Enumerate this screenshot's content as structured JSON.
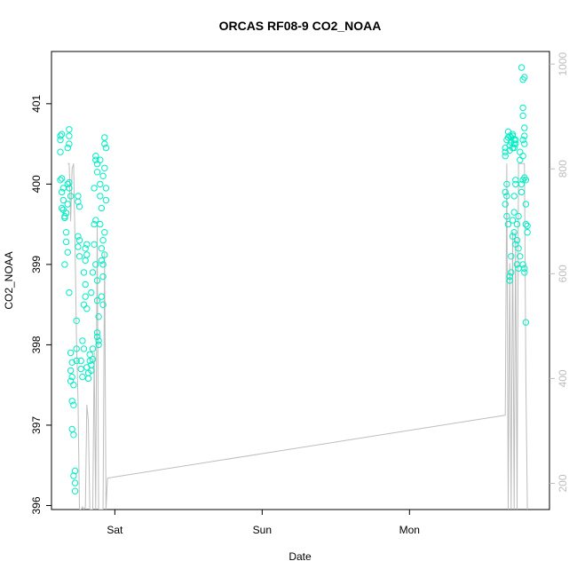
{
  "chart_data": {
    "type": "scatter",
    "title": "ORCAS RF08-9 CO2_NOAA",
    "xlabel": "Date",
    "ylabel": "CO2_NOAA",
    "x_ticks": [
      {
        "t": 1.0,
        "label": "Sat"
      },
      {
        "t": 2.0,
        "label": "Sun"
      },
      {
        "t": 3.0,
        "label": "Mon"
      }
    ],
    "y_ticks": [
      396,
      397,
      398,
      399,
      400,
      401
    ],
    "ylim": [
      395.95,
      401.65
    ],
    "xlim": [
      0.57,
      3.95
    ],
    "y2_ticks": [
      200,
      400,
      600,
      800,
      1000
    ],
    "y2lim": [
      1024,
      150
    ],
    "points_color": "#00eec4",
    "line_color": "#bdbdbd",
    "series": [
      {
        "kind": "points",
        "points": [
          [
            0.63,
            400.6
          ],
          [
            0.63,
            400.55
          ],
          [
            0.64,
            400.62
          ],
          [
            0.63,
            400.4
          ],
          [
            0.64,
            400.07
          ],
          [
            0.63,
            400.05
          ],
          [
            0.65,
            399.95
          ],
          [
            0.64,
            399.9
          ],
          [
            0.65,
            399.8
          ],
          [
            0.64,
            399.7
          ],
          [
            0.65,
            399.68
          ],
          [
            0.66,
            399.6
          ],
          [
            0.67,
            399.64
          ],
          [
            0.66,
            399.58
          ],
          [
            0.67,
            399.4
          ],
          [
            0.67,
            399.28
          ],
          [
            0.68,
            399.15
          ],
          [
            0.66,
            399.0
          ],
          [
            0.69,
            400.68
          ],
          [
            0.69,
            400.6
          ],
          [
            0.69,
            400.5
          ],
          [
            0.68,
            400.45
          ],
          [
            0.69,
            400.02
          ],
          [
            0.68,
            400.0
          ],
          [
            0.69,
            399.95
          ],
          [
            0.7,
            399.85
          ],
          [
            0.68,
            399.75
          ],
          [
            0.69,
            398.65
          ],
          [
            0.7,
            397.9
          ],
          [
            0.71,
            397.78
          ],
          [
            0.7,
            397.68
          ],
          [
            0.71,
            397.6
          ],
          [
            0.7,
            397.55
          ],
          [
            0.72,
            397.5
          ],
          [
            0.71,
            397.3
          ],
          [
            0.72,
            397.25
          ],
          [
            0.71,
            396.95
          ],
          [
            0.72,
            396.88
          ],
          [
            0.73,
            396.43
          ],
          [
            0.72,
            396.37
          ],
          [
            0.73,
            396.28
          ],
          [
            0.73,
            396.18
          ],
          [
            0.74,
            397.8
          ],
          [
            0.74,
            397.95
          ],
          [
            0.74,
            398.3
          ],
          [
            0.75,
            399.85
          ],
          [
            0.75,
            399.78
          ],
          [
            0.76,
            399.72
          ],
          [
            0.75,
            399.35
          ],
          [
            0.76,
            399.3
          ],
          [
            0.75,
            399.22
          ],
          [
            0.76,
            399.1
          ],
          [
            0.77,
            397.8
          ],
          [
            0.77,
            397.7
          ],
          [
            0.78,
            397.6
          ],
          [
            0.78,
            398.05
          ],
          [
            0.79,
            397.95
          ],
          [
            0.79,
            398.5
          ],
          [
            0.8,
            398.75
          ],
          [
            0.79,
            398.9
          ],
          [
            0.8,
            399.05
          ],
          [
            0.81,
            399.12
          ],
          [
            0.8,
            399.2
          ],
          [
            0.81,
            399.25
          ],
          [
            0.8,
            398.6
          ],
          [
            0.81,
            398.45
          ],
          [
            0.81,
            397.72
          ],
          [
            0.82,
            397.65
          ],
          [
            0.82,
            397.58
          ],
          [
            0.83,
            397.8
          ],
          [
            0.83,
            397.88
          ],
          [
            0.84,
            397.75
          ],
          [
            0.84,
            397.68
          ],
          [
            0.85,
            397.82
          ],
          [
            0.85,
            397.95
          ],
          [
            0.84,
            398.65
          ],
          [
            0.85,
            398.9
          ],
          [
            0.86,
            399.25
          ],
          [
            0.86,
            399.5
          ],
          [
            0.87,
            399.55
          ],
          [
            0.86,
            399.95
          ],
          [
            0.87,
            400.3
          ],
          [
            0.87,
            400.35
          ],
          [
            0.88,
            400.25
          ],
          [
            0.88,
            400.15
          ],
          [
            0.87,
            399.0
          ],
          [
            0.88,
            398.8
          ],
          [
            0.88,
            398.55
          ],
          [
            0.89,
            398.35
          ],
          [
            0.88,
            398.15
          ],
          [
            0.88,
            398.1
          ],
          [
            0.89,
            398.05
          ],
          [
            0.89,
            398.0
          ],
          [
            0.9,
            400.3
          ],
          [
            0.9,
            400.0
          ],
          [
            0.9,
            399.85
          ],
          [
            0.91,
            399.7
          ],
          [
            0.9,
            399.5
          ],
          [
            0.91,
            399.2
          ],
          [
            0.91,
            399.05
          ],
          [
            0.92,
            398.85
          ],
          [
            0.91,
            398.6
          ],
          [
            0.92,
            398.5
          ],
          [
            0.92,
            399.3
          ],
          [
            0.93,
            399.4
          ],
          [
            0.92,
            400.1
          ],
          [
            0.93,
            400.5
          ],
          [
            0.93,
            400.58
          ],
          [
            0.94,
            400.45
          ],
          [
            0.93,
            400.2
          ],
          [
            0.94,
            399.95
          ],
          [
            0.94,
            399.8
          ],
          [
            0.93,
            399.12
          ],
          [
            0.92,
            399.0
          ],
          [
            3.65,
            400.35
          ],
          [
            3.65,
            400.4
          ],
          [
            3.66,
            400.55
          ],
          [
            3.65,
            400.45
          ],
          [
            3.66,
            400.0
          ],
          [
            3.65,
            399.9
          ],
          [
            3.66,
            399.85
          ],
          [
            3.65,
            399.75
          ],
          [
            3.66,
            399.6
          ],
          [
            3.67,
            399.5
          ],
          [
            3.67,
            400.65
          ],
          [
            3.67,
            400.58
          ],
          [
            3.68,
            400.42
          ],
          [
            3.68,
            400.6
          ],
          [
            3.69,
            400.52
          ],
          [
            3.68,
            400.48
          ],
          [
            3.69,
            400.58
          ],
          [
            3.7,
            400.45
          ],
          [
            3.7,
            400.6
          ],
          [
            3.71,
            400.55
          ],
          [
            3.71,
            400.5
          ],
          [
            3.7,
            400.62
          ],
          [
            3.72,
            400.55
          ],
          [
            3.72,
            400.5
          ],
          [
            3.71,
            400.45
          ],
          [
            3.68,
            398.85
          ],
          [
            3.68,
            398.8
          ],
          [
            3.69,
            398.9
          ],
          [
            3.69,
            399.1
          ],
          [
            3.7,
            399.35
          ],
          [
            3.7,
            399.55
          ],
          [
            3.71,
            399.65
          ],
          [
            3.71,
            399.85
          ],
          [
            3.72,
            400.0
          ],
          [
            3.72,
            400.05
          ],
          [
            3.71,
            399.4
          ],
          [
            3.72,
            399.25
          ],
          [
            3.73,
            399.3
          ],
          [
            3.73,
            399.5
          ],
          [
            3.74,
            399.6
          ],
          [
            3.74,
            399.2
          ],
          [
            3.73,
            399.0
          ],
          [
            3.74,
            398.95
          ],
          [
            3.75,
            399.1
          ],
          [
            3.75,
            400.4
          ],
          [
            3.75,
            400.3
          ],
          [
            3.76,
            400.0
          ],
          [
            3.76,
            399.9
          ],
          [
            3.77,
            400.05
          ],
          [
            3.76,
            401.45
          ],
          [
            3.77,
            401.3
          ],
          [
            3.77,
            400.95
          ],
          [
            3.77,
            400.85
          ],
          [
            3.78,
            400.7
          ],
          [
            3.78,
            400.6
          ],
          [
            3.78,
            400.5
          ],
          [
            3.77,
            400.55
          ],
          [
            3.77,
            400.35
          ],
          [
            3.78,
            400.08
          ],
          [
            3.79,
            400.05
          ],
          [
            3.79,
            399.75
          ],
          [
            3.79,
            399.5
          ],
          [
            3.8,
            399.48
          ],
          [
            3.8,
            399.4
          ],
          [
            3.77,
            399.0
          ],
          [
            3.78,
            398.95
          ],
          [
            3.78,
            398.9
          ],
          [
            3.79,
            398.28
          ],
          [
            3.78,
            401.33
          ]
        ]
      },
      {
        "kind": "line",
        "axis": "right",
        "points": [
          [
            0.68,
            810
          ],
          [
            0.69,
            810
          ],
          [
            0.7,
            700
          ],
          [
            0.71,
            800
          ],
          [
            0.72,
            810
          ],
          [
            0.73,
            650
          ],
          [
            0.74,
            470
          ],
          [
            0.75,
            360
          ],
          [
            0.76,
            150
          ],
          [
            0.77,
            150
          ],
          [
            0.78,
            155
          ],
          [
            0.79,
            150
          ],
          [
            0.8,
            155
          ],
          [
            0.81,
            350
          ],
          [
            0.82,
            320
          ],
          [
            0.83,
            150
          ],
          [
            0.84,
            150
          ],
          [
            0.85,
            150
          ],
          [
            0.86,
            450
          ],
          [
            0.87,
            150
          ],
          [
            0.88,
            700
          ],
          [
            0.89,
            150
          ],
          [
            0.9,
            150
          ],
          [
            0.91,
            150
          ],
          [
            0.92,
            150
          ],
          [
            0.93,
            640
          ],
          [
            0.94,
            150
          ],
          [
            0.95,
            210
          ],
          [
            3.65,
            330
          ],
          [
            3.66,
            810
          ],
          [
            3.67,
            150
          ],
          [
            3.68,
            620
          ],
          [
            3.69,
            150
          ],
          [
            3.7,
            680
          ],
          [
            3.71,
            150
          ],
          [
            3.72,
            680
          ],
          [
            3.73,
            150
          ],
          [
            3.74,
            810
          ],
          [
            3.75,
            810
          ],
          [
            3.76,
            810
          ],
          [
            3.77,
            810
          ],
          [
            3.78,
            810
          ],
          [
            3.79,
            400
          ],
          [
            3.8,
            150
          ]
        ],
        "connector": [
          [
            0.95,
            210
          ],
          [
            3.65,
            330
          ]
        ]
      }
    ]
  }
}
